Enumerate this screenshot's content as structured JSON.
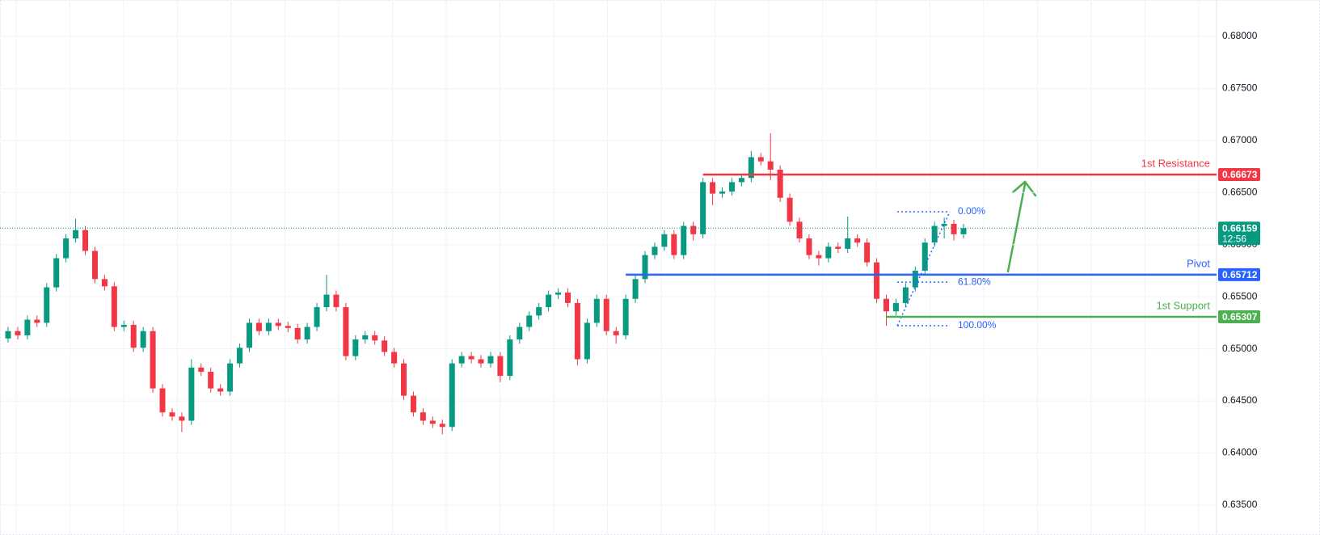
{
  "chart_data": {
    "type": "candlestick",
    "open": [
      0.651,
      0.6517,
      0.6513,
      0.6528,
      0.6525,
      0.6559,
      0.6587,
      0.6606,
      0.6614,
      0.6594,
      0.6567,
      0.656,
      0.6521,
      0.6523,
      0.6501,
      0.6517,
      0.6462,
      0.6439,
      0.6435,
      0.6431,
      0.6482,
      0.6478,
      0.6462,
      0.6459,
      0.6486,
      0.6501,
      0.6525,
      0.6517,
      0.6525,
      0.6522,
      0.652,
      0.6509,
      0.6521,
      0.654,
      0.6552,
      0.654,
      0.6493,
      0.6509,
      0.6513,
      0.6508,
      0.6497,
      0.6486,
      0.6455,
      0.6439,
      0.6431,
      0.6428,
      0.6425,
      0.6486,
      0.6493,
      0.649,
      0.6486,
      0.6493,
      0.6474,
      0.6509,
      0.6521,
      0.6532,
      0.654,
      0.6552,
      0.6554,
      0.6544,
      0.649,
      0.6525,
      0.6548,
      0.6517,
      0.6513,
      0.6548,
      0.6567,
      0.659,
      0.6598,
      0.661,
      0.659,
      0.6618,
      0.661,
      0.666,
      0.6649,
      0.6651,
      0.666,
      0.6664,
      0.6684,
      0.668,
      0.6672,
      0.6645,
      0.6622,
      0.6606,
      0.659,
      0.6587,
      0.6598,
      0.6596,
      0.6606,
      0.6602,
      0.6583,
      0.6548,
      0.6536,
      0.6544,
      0.6559,
      0.6575,
      0.6602,
      0.6618,
      0.662,
      0.661
    ],
    "high": [
      0.6521,
      0.6521,
      0.6532,
      0.6532,
      0.6563,
      0.6591,
      0.661,
      0.6625,
      0.6618,
      0.6598,
      0.6571,
      0.6564,
      0.6527,
      0.6527,
      0.6521,
      0.6521,
      0.6466,
      0.6443,
      0.6439,
      0.649,
      0.6486,
      0.6482,
      0.6466,
      0.649,
      0.6505,
      0.6529,
      0.6529,
      0.6529,
      0.6529,
      0.6526,
      0.6524,
      0.6525,
      0.6544,
      0.6571,
      0.6556,
      0.6544,
      0.6513,
      0.6517,
      0.6517,
      0.6512,
      0.6501,
      0.649,
      0.6459,
      0.6443,
      0.6435,
      0.6432,
      0.649,
      0.6497,
      0.6497,
      0.6494,
      0.6497,
      0.6497,
      0.6513,
      0.6525,
      0.6536,
      0.6544,
      0.6556,
      0.6558,
      0.6558,
      0.6548,
      0.6529,
      0.6552,
      0.6552,
      0.6521,
      0.6552,
      0.6571,
      0.6594,
      0.6602,
      0.6614,
      0.6614,
      0.6622,
      0.6622,
      0.6664,
      0.6664,
      0.6655,
      0.6664,
      0.6668,
      0.669,
      0.6688,
      0.6707,
      0.6676,
      0.6649,
      0.6626,
      0.661,
      0.6594,
      0.6602,
      0.6602,
      0.6627,
      0.661,
      0.6606,
      0.6587,
      0.6552,
      0.6548,
      0.6563,
      0.6579,
      0.6606,
      0.6622,
      0.6626,
      0.6624,
      0.662
    ],
    "low": [
      0.6506,
      0.6509,
      0.6509,
      0.6521,
      0.6521,
      0.6555,
      0.6583,
      0.6602,
      0.659,
      0.6563,
      0.6556,
      0.6517,
      0.6517,
      0.6497,
      0.6497,
      0.6458,
      0.6435,
      0.6431,
      0.642,
      0.6427,
      0.6474,
      0.6458,
      0.6455,
      0.6455,
      0.6482,
      0.6497,
      0.6513,
      0.6513,
      0.6518,
      0.6516,
      0.6505,
      0.6505,
      0.6517,
      0.6536,
      0.6536,
      0.6489,
      0.6489,
      0.6505,
      0.6504,
      0.6493,
      0.6482,
      0.6451,
      0.6435,
      0.6427,
      0.6424,
      0.6418,
      0.6421,
      0.6482,
      0.6486,
      0.6482,
      0.6482,
      0.6468,
      0.647,
      0.6505,
      0.6517,
      0.6528,
      0.6536,
      0.6548,
      0.654,
      0.6484,
      0.6486,
      0.6521,
      0.6513,
      0.6505,
      0.6509,
      0.6544,
      0.6563,
      0.6586,
      0.6594,
      0.6586,
      0.6586,
      0.6604,
      0.6606,
      0.6638,
      0.6645,
      0.6647,
      0.6656,
      0.666,
      0.6676,
      0.6662,
      0.6641,
      0.6618,
      0.6602,
      0.6586,
      0.658,
      0.6583,
      0.6592,
      0.6592,
      0.6598,
      0.6579,
      0.6544,
      0.65222,
      0.6532,
      0.654,
      0.6555,
      0.6571,
      0.6598,
      0.6606,
      0.6604,
      0.6606
    ],
    "close": [
      0.6517,
      0.6513,
      0.6528,
      0.6525,
      0.6559,
      0.6587,
      0.6606,
      0.6614,
      0.6594,
      0.6567,
      0.656,
      0.6521,
      0.6523,
      0.6501,
      0.6517,
      0.6462,
      0.6439,
      0.6435,
      0.6431,
      0.6482,
      0.6478,
      0.6462,
      0.6459,
      0.6486,
      0.6501,
      0.6525,
      0.6517,
      0.6525,
      0.6522,
      0.652,
      0.6509,
      0.6521,
      0.654,
      0.6552,
      0.654,
      0.6493,
      0.6509,
      0.6513,
      0.6508,
      0.6497,
      0.6486,
      0.6455,
      0.6439,
      0.6431,
      0.6428,
      0.6425,
      0.6486,
      0.6493,
      0.649,
      0.6486,
      0.6493,
      0.6474,
      0.6509,
      0.6521,
      0.6532,
      0.654,
      0.6552,
      0.6554,
      0.6544,
      0.649,
      0.6525,
      0.6548,
      0.6517,
      0.6513,
      0.6548,
      0.6567,
      0.659,
      0.6598,
      0.661,
      0.659,
      0.6618,
      0.661,
      0.666,
      0.6649,
      0.6651,
      0.666,
      0.6664,
      0.6684,
      0.668,
      0.6672,
      0.6645,
      0.6622,
      0.6606,
      0.659,
      0.6587,
      0.6598,
      0.6596,
      0.6606,
      0.6602,
      0.6583,
      0.6548,
      0.6536,
      0.6544,
      0.6559,
      0.6575,
      0.6602,
      0.6618,
      0.662,
      0.661,
      0.66159
    ],
    "up_color": "#089981",
    "down_color": "#f23645",
    "ylim": [
      0.63422,
      0.68349
    ],
    "yticks": [
      {
        "value": 0.635,
        "label": "0.63500"
      },
      {
        "value": 0.64,
        "label": "0.64000"
      },
      {
        "value": 0.645,
        "label": "0.64500"
      },
      {
        "value": 0.65,
        "label": "0.65000"
      },
      {
        "value": 0.655,
        "label": "0.65500"
      },
      {
        "value": 0.66,
        "label": "0.66000"
      },
      {
        "value": 0.665,
        "label": "0.66500"
      },
      {
        "value": 0.67,
        "label": "0.67000"
      },
      {
        "value": 0.675,
        "label": "0.67500"
      },
      {
        "value": 0.68,
        "label": "0.68000"
      }
    ],
    "grid": true,
    "levels": [
      {
        "name": "1st Resistance",
        "value": 0.66673,
        "color": "#f23645"
      },
      {
        "name": "Pivot",
        "value": 0.65712,
        "color": "#2962ff"
      },
      {
        "name": "1st Support",
        "value": 0.65307,
        "color": "#4caf50"
      }
    ],
    "last_price": 0.66159,
    "countdown": "12:56",
    "last_color": "#089981",
    "fib": {
      "high": 0.66316,
      "low": 0.65222,
      "color": "#2962ff",
      "levels": [
        {
          "value": 0,
          "label": "0.00%"
        },
        {
          "value": 61.8,
          "label": "61.80%"
        },
        {
          "value": 100,
          "label": "100.00%"
        }
      ]
    }
  }
}
